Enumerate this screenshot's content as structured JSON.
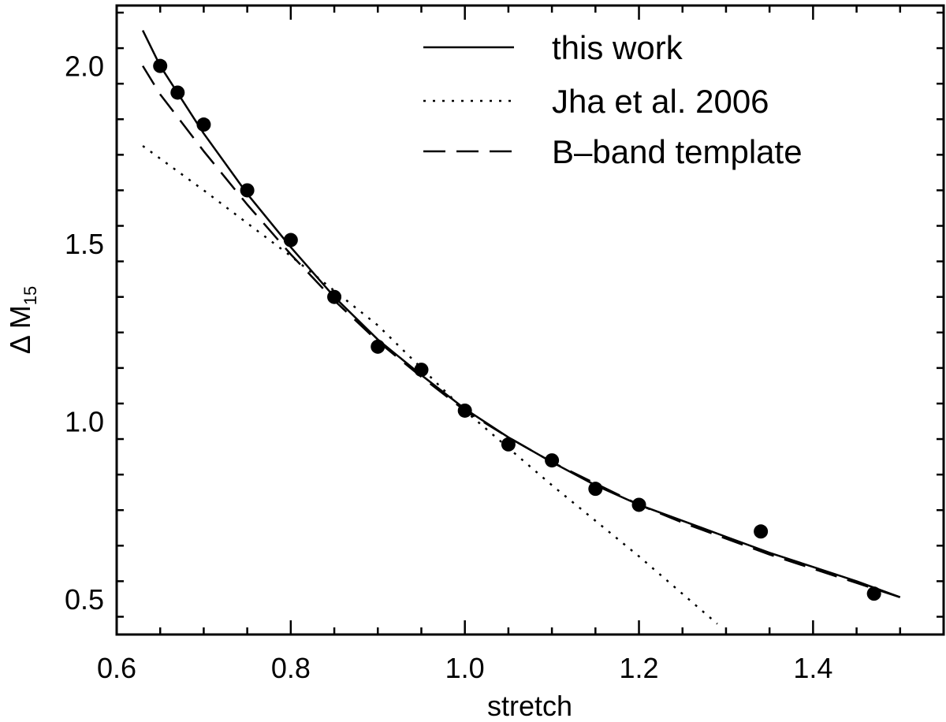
{
  "chart_data": {
    "type": "scatter",
    "xlabel": "stretch",
    "ylabel": {
      "main": "Δ M",
      "sub": "15"
    },
    "xlim": [
      0.6,
      1.55
    ],
    "ylim": [
      0.4,
      2.17
    ],
    "xticks": [
      0.6,
      0.8,
      1.0,
      1.2,
      1.4
    ],
    "xtick_labels": [
      "0.6",
      "0.8",
      "1.0",
      "1.2",
      "1.4"
    ],
    "yticks": [
      0.5,
      1.0,
      1.5,
      2.0
    ],
    "ytick_labels": [
      "0.5",
      "1.0",
      "1.5",
      "2.0"
    ],
    "legend_position": "top-right",
    "grid": false,
    "points": {
      "x": [
        0.65,
        0.67,
        0.7,
        0.75,
        0.8,
        0.85,
        0.9,
        0.95,
        1.0,
        1.05,
        1.1,
        1.15,
        1.2,
        1.34,
        1.47
      ],
      "y": [
        2.0,
        1.925,
        1.835,
        1.65,
        1.51,
        1.35,
        1.21,
        1.145,
        1.03,
        0.935,
        0.89,
        0.81,
        0.765,
        0.69,
        0.515
      ]
    },
    "series": [
      {
        "name": "this work",
        "style": "solid",
        "x": [
          0.63,
          0.65,
          0.7,
          0.75,
          0.8,
          0.85,
          0.9,
          0.95,
          1.0,
          1.05,
          1.1,
          1.15,
          1.2,
          1.25,
          1.3,
          1.35,
          1.4,
          1.45,
          1.5
        ],
        "y": [
          2.1,
          2.0,
          1.81,
          1.64,
          1.49,
          1.35,
          1.23,
          1.13,
          1.035,
          0.955,
          0.885,
          0.82,
          0.765,
          0.72,
          0.675,
          0.63,
          0.59,
          0.55,
          0.505
        ]
      },
      {
        "name": "Jha et al. 2006",
        "style": "dotted",
        "x": [
          0.63,
          0.7,
          0.8,
          0.9,
          1.0,
          1.1,
          1.2,
          1.29
        ],
        "y": [
          1.775,
          1.65,
          1.465,
          1.27,
          1.03,
          0.82,
          0.62,
          0.43
        ]
      },
      {
        "name": "B–band template",
        "style": "dashed",
        "x": [
          0.63,
          0.65,
          0.7,
          0.75,
          0.8,
          0.85,
          0.9,
          0.95,
          1.0,
          1.05,
          1.1,
          1.15,
          1.2,
          1.25,
          1.3,
          1.35,
          1.4,
          1.45,
          1.5
        ],
        "y": [
          2.0,
          1.92,
          1.76,
          1.61,
          1.47,
          1.34,
          1.225,
          1.125,
          1.03,
          0.955,
          0.885,
          0.825,
          0.765,
          0.715,
          0.67,
          0.625,
          0.585,
          0.545,
          0.505
        ]
      }
    ]
  }
}
